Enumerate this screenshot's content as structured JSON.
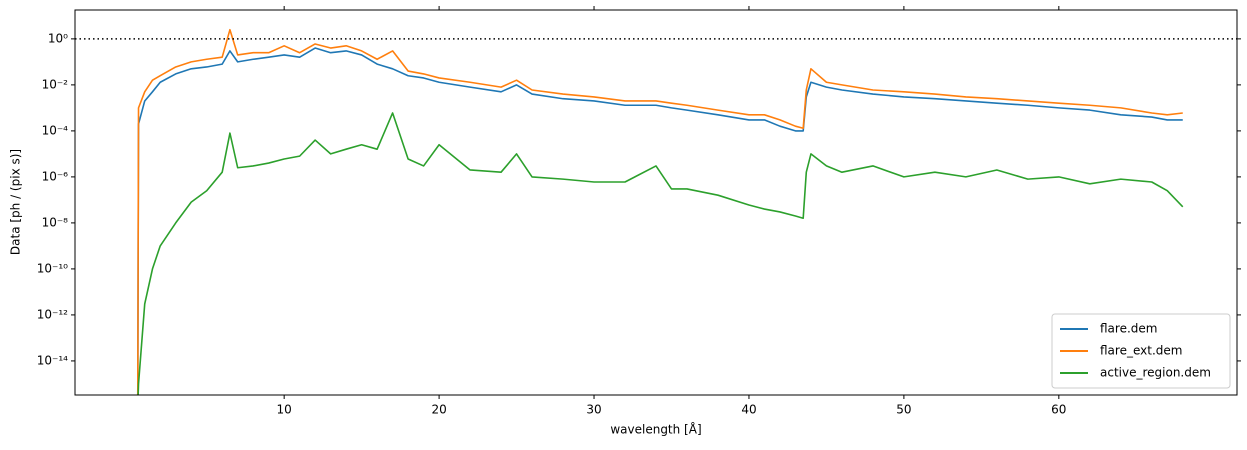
{
  "chart_data": {
    "type": "line",
    "xlabel": "wavelength [Å]",
    "ylabel": "Data [ph / (pix s)]",
    "log_y": true,
    "xlim": [
      -3.5,
      71.5
    ],
    "ylim": [
      3.3e-16,
      18
    ],
    "xticks": [
      10,
      20,
      30,
      40,
      50,
      60
    ],
    "yticks": [
      {
        "value": 1e-14,
        "label": "10⁻¹⁴"
      },
      {
        "value": 1e-12,
        "label": "10⁻¹²"
      },
      {
        "value": 1e-10,
        "label": "10⁻¹⁰"
      },
      {
        "value": 1e-08,
        "label": "10⁻⁸"
      },
      {
        "value": 1e-06,
        "label": "10⁻⁶"
      },
      {
        "value": 0.0001,
        "label": "10⁻⁴"
      },
      {
        "value": 0.01,
        "label": "10⁻²"
      },
      {
        "value": 1,
        "label": "10⁰"
      }
    ],
    "hline": 1,
    "legend": "lower right",
    "x": [
      0.55,
      0.6,
      1,
      1.5,
      2,
      3,
      4,
      5,
      6,
      6.5,
      7,
      8,
      9,
      10,
      11,
      12,
      13,
      14,
      15,
      16,
      17,
      18,
      19,
      20,
      22,
      24,
      25,
      26,
      28,
      30,
      32,
      34,
      35,
      36,
      38,
      40,
      41,
      42,
      43,
      43.5,
      43.7,
      44,
      45,
      46,
      48,
      50,
      52,
      54,
      56,
      58,
      60,
      62,
      64,
      66,
      67,
      68
    ],
    "series": [
      {
        "name": "flare.dem",
        "color": "#1f77b4",
        "values": [
          1e-16,
          0.0002,
          0.002,
          0.005,
          0.013,
          0.03,
          0.05,
          0.06,
          0.08,
          0.3,
          0.1,
          0.13,
          0.16,
          0.2,
          0.16,
          0.4,
          0.25,
          0.3,
          0.2,
          0.08,
          0.05,
          0.025,
          0.02,
          0.013,
          0.008,
          0.005,
          0.01,
          0.004,
          0.0025,
          0.002,
          0.0013,
          0.0013,
          0.001,
          0.0008,
          0.0005,
          0.0003,
          0.0003,
          0.00016,
          0.0001,
          0.0001,
          0.003,
          0.013,
          0.008,
          0.006,
          0.004,
          0.003,
          0.0025,
          0.002,
          0.0016,
          0.0013,
          0.001,
          0.0008,
          0.0005,
          0.0004,
          0.0003,
          0.0003
        ]
      },
      {
        "name": "flare_ext.dem",
        "color": "#ff7f0e",
        "values": [
          1e-16,
          0.001,
          0.005,
          0.016,
          0.025,
          0.06,
          0.1,
          0.13,
          0.16,
          2.5,
          0.2,
          0.25,
          0.25,
          0.5,
          0.25,
          0.6,
          0.4,
          0.5,
          0.3,
          0.13,
          0.3,
          0.04,
          0.03,
          0.02,
          0.013,
          0.008,
          0.016,
          0.006,
          0.004,
          0.003,
          0.002,
          0.002,
          0.0016,
          0.0013,
          0.0008,
          0.0005,
          0.0005,
          0.0003,
          0.00016,
          0.00013,
          0.006,
          0.05,
          0.013,
          0.01,
          0.006,
          0.005,
          0.004,
          0.003,
          0.0025,
          0.002,
          0.0016,
          0.0013,
          0.001,
          0.0006,
          0.0005,
          0.0006
        ]
      },
      {
        "name": "active_region.dem",
        "color": "#2ca02c",
        "values": [
          1e-16,
          1e-15,
          3e-12,
          1e-10,
          1e-09,
          1e-08,
          8e-08,
          2.5e-07,
          1.6e-06,
          8e-05,
          2.5e-06,
          3e-06,
          4e-06,
          6e-06,
          8e-06,
          4e-05,
          1e-05,
          1.6e-05,
          2.5e-05,
          1.6e-05,
          0.0006,
          6e-06,
          3e-06,
          2.5e-05,
          2e-06,
          1.6e-06,
          1e-05,
          1e-06,
          8e-07,
          6e-07,
          6e-07,
          3e-06,
          3e-07,
          3e-07,
          1.6e-07,
          6e-08,
          4e-08,
          3e-08,
          2e-08,
          1.6e-08,
          1.6e-06,
          1e-05,
          3e-06,
          1.6e-06,
          3e-06,
          1e-06,
          1.6e-06,
          1e-06,
          2e-06,
          8e-07,
          1e-06,
          5e-07,
          8e-07,
          6e-07,
          2.5e-07,
          5e-08
        ]
      }
    ]
  }
}
